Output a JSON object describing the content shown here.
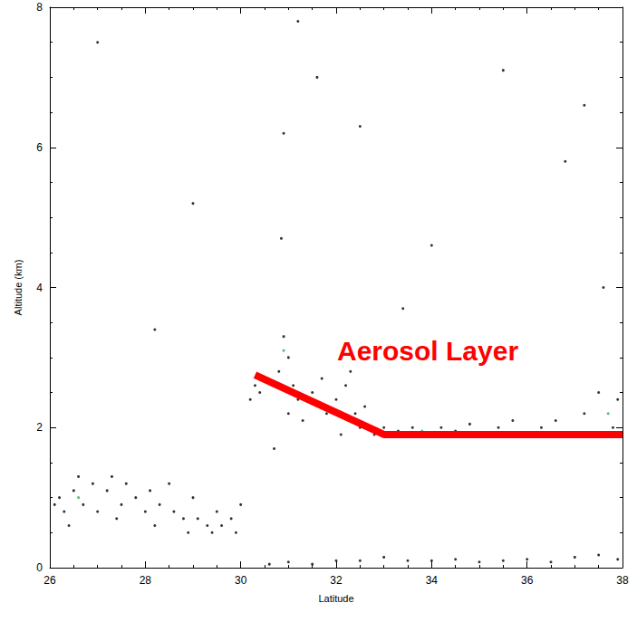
{
  "chart_data": {
    "type": "scatter",
    "x_label": "Latitude",
    "y_label": "Altitude (km)",
    "xlim": [
      26,
      38
    ],
    "xticks": [
      26,
      28,
      30,
      32,
      34,
      36,
      38
    ],
    "ylim": [
      0,
      8
    ],
    "yticks": [
      0,
      2,
      4,
      6,
      8
    ],
    "grid": false,
    "annotations": [
      "Aerosol Layer"
    ],
    "series": [
      {
        "type": "scatter",
        "color": "#000000",
        "marker": "circle",
        "x": [
          26.1,
          26.2,
          26.3,
          26.4,
          26.5,
          26.6,
          26.7,
          26.9,
          27.0,
          27.2,
          27.3,
          27.4,
          27.5,
          27.6,
          27.8,
          28.0,
          28.1,
          28.2,
          28.3,
          28.5,
          28.6,
          28.8,
          28.9,
          29.0,
          29.1,
          29.3,
          29.4,
          29.5,
          29.6,
          29.8,
          29.9,
          30.0,
          30.2,
          30.3,
          30.4,
          30.7,
          30.8,
          30.85,
          30.9,
          31.0,
          31.0,
          31.1,
          31.2,
          31.3,
          31.5,
          31.7,
          31.8,
          32.0,
          32.1,
          32.2,
          32.3,
          32.4,
          32.5,
          32.6,
          32.8,
          33.0,
          33.3,
          33.6,
          33.9,
          34.2,
          34.5,
          34.8,
          35.1,
          35.4,
          35.7,
          36.0,
          36.3,
          36.6,
          36.9,
          37.2,
          37.5,
          37.6,
          37.8,
          37.9,
          30.6,
          31.0,
          31.5,
          32.0,
          32.5,
          33.0,
          33.5,
          34.0,
          34.5,
          35.0,
          35.5,
          36.0,
          36.5,
          37.0,
          37.5,
          37.9,
          27.0,
          29.0,
          31.2,
          32.5,
          34.0,
          35.5,
          36.8,
          28.2,
          33.4,
          37.2,
          30.9,
          31.6
        ],
        "values": [
          0.9,
          1.0,
          0.8,
          0.6,
          1.1,
          1.3,
          0.9,
          1.2,
          0.8,
          1.1,
          1.3,
          0.7,
          0.9,
          1.2,
          1.0,
          0.8,
          1.1,
          0.6,
          0.9,
          1.2,
          0.8,
          0.7,
          0.5,
          1.0,
          0.7,
          0.6,
          0.5,
          0.8,
          0.6,
          0.7,
          0.5,
          0.9,
          2.4,
          2.6,
          2.5,
          1.7,
          2.8,
          4.7,
          3.3,
          3.0,
          2.2,
          2.6,
          2.4,
          2.1,
          2.5,
          2.7,
          2.2,
          2.4,
          1.9,
          2.6,
          2.8,
          2.2,
          2.0,
          2.3,
          1.9,
          2.0,
          1.95,
          2.0,
          1.9,
          2.0,
          1.95,
          2.05,
          1.9,
          2.0,
          2.1,
          1.9,
          2.0,
          2.1,
          1.9,
          2.2,
          2.5,
          4.0,
          2.0,
          2.4,
          0.05,
          0.08,
          0.05,
          0.1,
          0.1,
          0.15,
          0.1,
          0.1,
          0.12,
          0.08,
          0.1,
          0.12,
          0.08,
          0.15,
          0.18,
          0.12,
          7.5,
          5.2,
          7.8,
          6.3,
          4.6,
          7.1,
          5.8,
          3.4,
          3.7,
          6.6,
          6.2,
          7.0
        ]
      },
      {
        "type": "scatter",
        "color": "#33aa55",
        "marker": "circle",
        "x": [
          26.6,
          30.9,
          33.8,
          37.7
        ],
        "values": [
          1.0,
          3.1,
          1.95,
          2.2
        ]
      },
      {
        "type": "line",
        "color": "#ff0000",
        "line_style": "solid",
        "x": [
          30.3,
          33,
          38
        ],
        "values": [
          2.75,
          1.9,
          1.9
        ]
      }
    ]
  }
}
